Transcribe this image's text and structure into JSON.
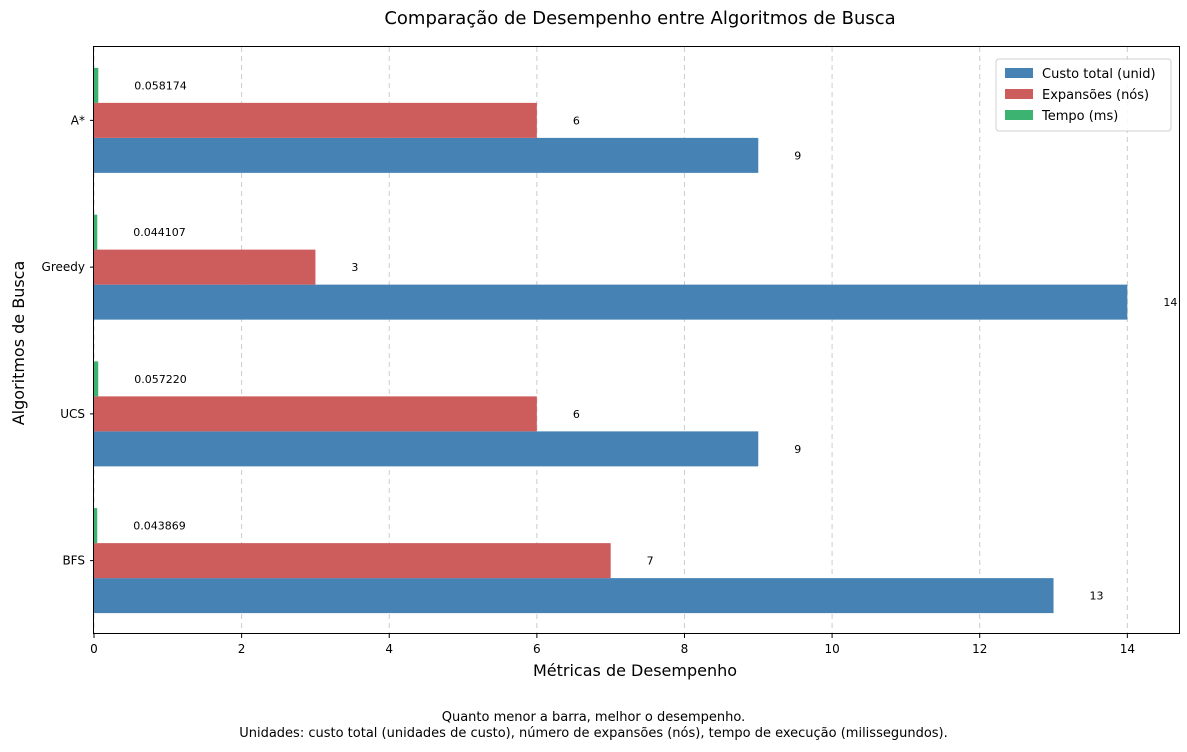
{
  "chart_data": {
    "type": "bar",
    "orientation": "horizontal",
    "title": "Comparação de Desempenho entre Algoritmos de Busca",
    "xlabel": "Métricas de Desempenho",
    "ylabel": "Algoritmos de Busca",
    "categories": [
      "BFS",
      "UCS",
      "Greedy",
      "A*"
    ],
    "series": [
      {
        "name": "Custo total (unid)",
        "color": "#4682b4",
        "values": [
          13,
          9,
          14,
          9
        ],
        "labels": [
          "13",
          "9",
          "14",
          "9"
        ]
      },
      {
        "name": "Expansões (nós)",
        "color": "#cd5c5c",
        "values": [
          7,
          6,
          3,
          6
        ],
        "labels": [
          "7",
          "6",
          "3",
          "6"
        ]
      },
      {
        "name": "Tempo (ms)",
        "color": "#3cb371",
        "values": [
          0.043869,
          0.05722,
          0.044107,
          0.058174
        ],
        "labels": [
          "0.043869",
          "0.057220",
          "0.044107",
          "0.058174"
        ]
      }
    ],
    "xlim": [
      0,
      14.7
    ],
    "xticks": [
      0,
      2,
      4,
      6,
      8,
      10,
      12,
      14
    ],
    "grid": "x, dashed",
    "legend": "top-right"
  },
  "footer": {
    "line1": "Quanto menor a barra, melhor o desempenho.",
    "line2": "Unidades: custo total (unidades de custo), número de expansões (nós), tempo de execução (milissegundos)."
  }
}
